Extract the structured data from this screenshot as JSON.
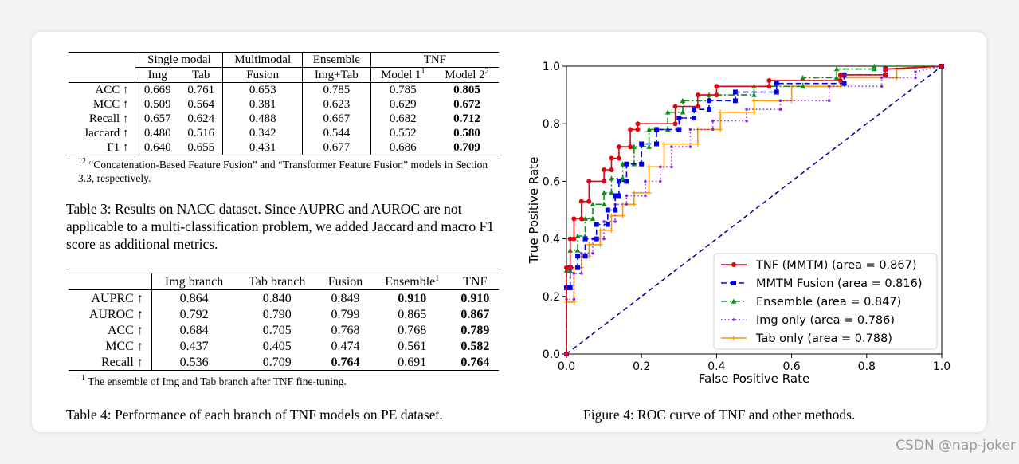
{
  "table3": {
    "group_headers": [
      "Single modal",
      "Multimodal",
      "Ensemble",
      "TNF"
    ],
    "sub_headers": [
      "Img",
      "Tab",
      "Fusion",
      "Img+Tab",
      "Model 1",
      "Model 2"
    ],
    "sub_sup": [
      "1",
      "2"
    ],
    "rows": [
      {
        "label": "ACC ↑",
        "cells": [
          "0.669",
          "0.761",
          "0.653",
          "0.785",
          "0.785",
          "0.805"
        ]
      },
      {
        "label": "MCC ↑",
        "cells": [
          "0.509",
          "0.564",
          "0.381",
          "0.623",
          "0.629",
          "0.672"
        ]
      },
      {
        "label": "Recall ↑",
        "cells": [
          "0.657",
          "0.624",
          "0.488",
          "0.667",
          "0.682",
          "0.712"
        ]
      },
      {
        "label": "Jaccard ↑",
        "cells": [
          "0.480",
          "0.516",
          "0.342",
          "0.544",
          "0.552",
          "0.580"
        ]
      },
      {
        "label": "F1 ↑",
        "cells": [
          "0.640",
          "0.655",
          "0.431",
          "0.677",
          "0.686",
          "0.709"
        ]
      }
    ],
    "footnote_mark": "12",
    "footnote": "“Concatenation-Based Feature Fusion” and “Transformer Feature Fusion” models in Section 3.3, respectively.",
    "caption": "Table 3: Results on NACC dataset. Since AUPRC and AUROC are not applicable to a multi-classification problem, we added Jaccard and macro F1 score as additional metrics."
  },
  "table4": {
    "headers": [
      "Img branch",
      "Tab branch",
      "Fusion",
      "Ensemble",
      "TNF"
    ],
    "ensemble_sup": "1",
    "rows": [
      {
        "label": "AUPRC ↑",
        "cells": [
          "0.864",
          "0.840",
          "0.849",
          "0.910",
          "0.910"
        ]
      },
      {
        "label": "AUROC ↑",
        "cells": [
          "0.792",
          "0.790",
          "0.799",
          "0.865",
          "0.867"
        ]
      },
      {
        "label": "ACC ↑",
        "cells": [
          "0.684",
          "0.705",
          "0.768",
          "0.768",
          "0.789"
        ]
      },
      {
        "label": "MCC ↑",
        "cells": [
          "0.437",
          "0.405",
          "0.474",
          "0.561",
          "0.582"
        ]
      },
      {
        "label": "Recall ↑",
        "cells": [
          "0.536",
          "0.709",
          "0.764",
          "0.691",
          "0.764"
        ]
      }
    ],
    "footnote_mark": "1",
    "footnote": "The ensemble of Img and Tab branch after TNF fine-tuning.",
    "caption": "Table 4: Performance of each branch of TNF models on PE dataset."
  },
  "figure_caption": "Figure 4: ROC curve of TNF and other methods.",
  "watermark": "CSDN @nap-joker",
  "chart_data": {
    "type": "line",
    "title": "",
    "xlabel": "False Positive Rate",
    "ylabel": "True Positive Rate",
    "xlim": [
      0,
      1
    ],
    "ylim": [
      0,
      1
    ],
    "xticks": [
      "0.0",
      "0.2",
      "0.4",
      "0.6",
      "0.8",
      "1.0"
    ],
    "yticks": [
      "0.0",
      "0.2",
      "0.4",
      "0.6",
      "0.8",
      "1.0"
    ],
    "legend_position": "bottom-right",
    "series": [
      {
        "name": "TNF (MMTM) (area = 0.867)",
        "color": "#e8000b",
        "dash": "",
        "marker": "circle",
        "points": [
          [
            0,
            0
          ],
          [
            0,
            0.3
          ],
          [
            0.01,
            0.3
          ],
          [
            0.01,
            0.4
          ],
          [
            0.02,
            0.4
          ],
          [
            0.02,
            0.47
          ],
          [
            0.04,
            0.47
          ],
          [
            0.04,
            0.53
          ],
          [
            0.06,
            0.53
          ],
          [
            0.06,
            0.6
          ],
          [
            0.1,
            0.6
          ],
          [
            0.1,
            0.64
          ],
          [
            0.12,
            0.64
          ],
          [
            0.12,
            0.68
          ],
          [
            0.14,
            0.68
          ],
          [
            0.14,
            0.72
          ],
          [
            0.17,
            0.72
          ],
          [
            0.17,
            0.78
          ],
          [
            0.19,
            0.78
          ],
          [
            0.19,
            0.8
          ],
          [
            0.29,
            0.8
          ],
          [
            0.29,
            0.86
          ],
          [
            0.35,
            0.86
          ],
          [
            0.35,
            0.9
          ],
          [
            0.4,
            0.9
          ],
          [
            0.4,
            0.93
          ],
          [
            0.54,
            0.93
          ],
          [
            0.54,
            0.95
          ],
          [
            0.73,
            0.95
          ],
          [
            0.73,
            0.97
          ],
          [
            0.85,
            0.97
          ],
          [
            0.85,
            0.99
          ],
          [
            1,
            1
          ]
        ]
      },
      {
        "name": "MMTM Fusion (area = 0.816)",
        "color": "#0000e6",
        "dash": "7,4",
        "marker": "square",
        "points": [
          [
            0,
            0
          ],
          [
            0,
            0.23
          ],
          [
            0.01,
            0.23
          ],
          [
            0.01,
            0.3
          ],
          [
            0.03,
            0.3
          ],
          [
            0.03,
            0.34
          ],
          [
            0.05,
            0.34
          ],
          [
            0.05,
            0.4
          ],
          [
            0.08,
            0.4
          ],
          [
            0.08,
            0.45
          ],
          [
            0.11,
            0.45
          ],
          [
            0.11,
            0.5
          ],
          [
            0.13,
            0.5
          ],
          [
            0.13,
            0.55
          ],
          [
            0.14,
            0.55
          ],
          [
            0.14,
            0.6
          ],
          [
            0.16,
            0.6
          ],
          [
            0.16,
            0.66
          ],
          [
            0.2,
            0.66
          ],
          [
            0.2,
            0.73
          ],
          [
            0.24,
            0.73
          ],
          [
            0.24,
            0.78
          ],
          [
            0.3,
            0.78
          ],
          [
            0.3,
            0.82
          ],
          [
            0.34,
            0.82
          ],
          [
            0.34,
            0.85
          ],
          [
            0.38,
            0.85
          ],
          [
            0.38,
            0.88
          ],
          [
            0.45,
            0.88
          ],
          [
            0.45,
            0.91
          ],
          [
            0.56,
            0.91
          ],
          [
            0.56,
            0.94
          ],
          [
            0.74,
            0.94
          ],
          [
            0.74,
            0.97
          ],
          [
            0.85,
            0.97
          ],
          [
            0.85,
            0.99
          ],
          [
            1,
            1
          ]
        ]
      },
      {
        "name": "Ensemble (area = 0.847)",
        "color": "#128c1a",
        "dash": "8,3,2,3",
        "marker": "triangle",
        "points": [
          [
            0,
            0
          ],
          [
            0,
            0.29
          ],
          [
            0.01,
            0.29
          ],
          [
            0.01,
            0.36
          ],
          [
            0.03,
            0.36
          ],
          [
            0.03,
            0.41
          ],
          [
            0.05,
            0.41
          ],
          [
            0.05,
            0.47
          ],
          [
            0.07,
            0.47
          ],
          [
            0.07,
            0.52
          ],
          [
            0.1,
            0.52
          ],
          [
            0.1,
            0.56
          ],
          [
            0.12,
            0.56
          ],
          [
            0.12,
            0.61
          ],
          [
            0.15,
            0.61
          ],
          [
            0.15,
            0.66
          ],
          [
            0.18,
            0.66
          ],
          [
            0.18,
            0.72
          ],
          [
            0.22,
            0.72
          ],
          [
            0.22,
            0.78
          ],
          [
            0.27,
            0.78
          ],
          [
            0.27,
            0.84
          ],
          [
            0.31,
            0.84
          ],
          [
            0.31,
            0.88
          ],
          [
            0.38,
            0.88
          ],
          [
            0.38,
            0.9
          ],
          [
            0.5,
            0.9
          ],
          [
            0.5,
            0.93
          ],
          [
            0.63,
            0.93
          ],
          [
            0.63,
            0.96
          ],
          [
            0.72,
            0.96
          ],
          [
            0.72,
            0.99
          ],
          [
            0.82,
            0.99
          ],
          [
            0.82,
            1
          ],
          [
            1,
            1
          ]
        ]
      },
      {
        "name": "Img only (area = 0.786)",
        "color": "#8a2be2",
        "dash": "1.5,3",
        "marker": "star",
        "points": [
          [
            0,
            0
          ],
          [
            0,
            0.19
          ],
          [
            0.02,
            0.19
          ],
          [
            0.02,
            0.28
          ],
          [
            0.04,
            0.28
          ],
          [
            0.04,
            0.35
          ],
          [
            0.07,
            0.35
          ],
          [
            0.07,
            0.4
          ],
          [
            0.1,
            0.4
          ],
          [
            0.1,
            0.46
          ],
          [
            0.13,
            0.46
          ],
          [
            0.13,
            0.52
          ],
          [
            0.16,
            0.52
          ],
          [
            0.16,
            0.55
          ],
          [
            0.21,
            0.55
          ],
          [
            0.21,
            0.6
          ],
          [
            0.25,
            0.6
          ],
          [
            0.25,
            0.65
          ],
          [
            0.28,
            0.65
          ],
          [
            0.28,
            0.72
          ],
          [
            0.33,
            0.72
          ],
          [
            0.33,
            0.78
          ],
          [
            0.39,
            0.78
          ],
          [
            0.39,
            0.81
          ],
          [
            0.48,
            0.81
          ],
          [
            0.48,
            0.85
          ],
          [
            0.57,
            0.85
          ],
          [
            0.57,
            0.88
          ],
          [
            0.7,
            0.88
          ],
          [
            0.7,
            0.93
          ],
          [
            0.84,
            0.93
          ],
          [
            0.84,
            0.96
          ],
          [
            0.93,
            0.96
          ],
          [
            0.93,
            0.98
          ],
          [
            1,
            1
          ]
        ]
      },
      {
        "name": "Tab only (area = 0.788)",
        "color": "#ff9900",
        "dash": "",
        "marker": "x",
        "points": [
          [
            0,
            0
          ],
          [
            0,
            0.18
          ],
          [
            0.02,
            0.18
          ],
          [
            0.02,
            0.3
          ],
          [
            0.04,
            0.3
          ],
          [
            0.04,
            0.34
          ],
          [
            0.06,
            0.34
          ],
          [
            0.06,
            0.38
          ],
          [
            0.09,
            0.38
          ],
          [
            0.09,
            0.43
          ],
          [
            0.12,
            0.43
          ],
          [
            0.12,
            0.48
          ],
          [
            0.15,
            0.48
          ],
          [
            0.15,
            0.52
          ],
          [
            0.18,
            0.52
          ],
          [
            0.18,
            0.56
          ],
          [
            0.22,
            0.56
          ],
          [
            0.22,
            0.65
          ],
          [
            0.26,
            0.65
          ],
          [
            0.26,
            0.73
          ],
          [
            0.35,
            0.73
          ],
          [
            0.35,
            0.78
          ],
          [
            0.41,
            0.78
          ],
          [
            0.41,
            0.84
          ],
          [
            0.5,
            0.84
          ],
          [
            0.5,
            0.88
          ],
          [
            0.6,
            0.88
          ],
          [
            0.6,
            0.93
          ],
          [
            0.73,
            0.93
          ],
          [
            0.73,
            0.96
          ],
          [
            0.88,
            0.96
          ],
          [
            0.88,
            0.99
          ],
          [
            1,
            1
          ]
        ]
      },
      {
        "name": "chance",
        "color": "#00008b",
        "dash": "6,4",
        "marker": "",
        "points": [
          [
            0,
            0
          ],
          [
            1,
            1
          ]
        ]
      }
    ]
  }
}
